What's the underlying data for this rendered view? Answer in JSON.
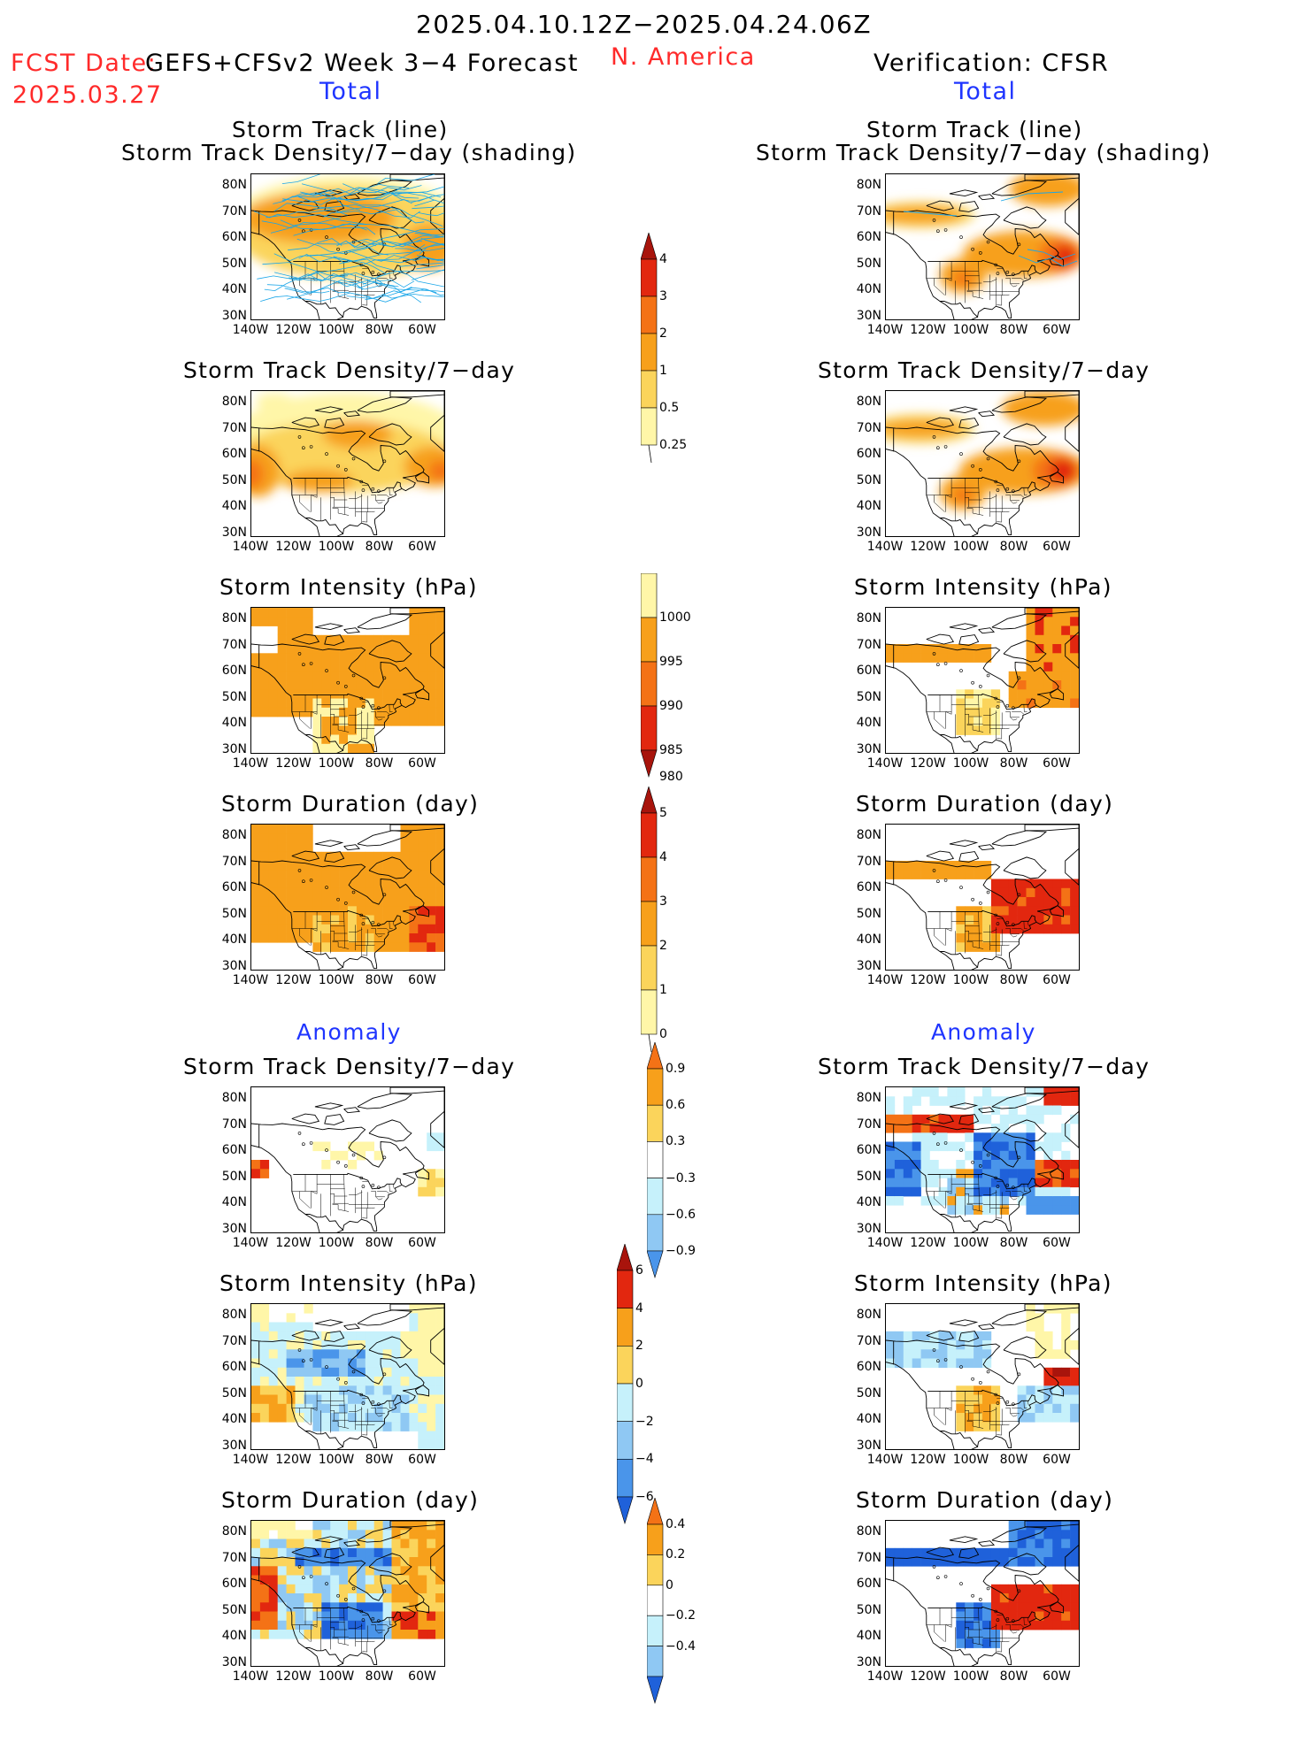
{
  "header": {
    "period": "2025.04.10.12Z−2025.04.24.06Z",
    "fcst_date_label": "FCST Date:",
    "model": "GEFS+CFSv2 Week 3−4 Forecast",
    "fcst_date": "2025.03.27",
    "region": "N. America",
    "verification": "Verification: CFSR"
  },
  "sections": {
    "total": "Total",
    "anomaly": "Anomaly"
  },
  "panel_titles": {
    "track_line": "Storm Track (line)",
    "track_shading": "Storm Track Density/7−day (shading)",
    "density": "Storm Track Density/7−day",
    "intensity": "Storm Intensity (hPa)",
    "duration": "Storm Duration (day)"
  },
  "axes": {
    "lat_labels": [
      "80N",
      "70N",
      "60N",
      "50N",
      "40N",
      "30N"
    ],
    "lon_labels": [
      "140W",
      "120W",
      "100W",
      "80W",
      "60W"
    ]
  },
  "colorbars": {
    "density_total": [
      "4",
      "3",
      "2",
      "1",
      "0.5",
      "0.25"
    ],
    "intensity_total": [
      "1000",
      "995",
      "990",
      "985",
      "980"
    ],
    "duration_total": [
      "5",
      "4",
      "3",
      "2",
      "1",
      "0"
    ],
    "density_anom": [
      "0.9",
      "0.6",
      "0.3",
      "−0.3",
      "−0.6",
      "−0.9"
    ],
    "intensity_anom": [
      "6",
      "4",
      "2",
      "0",
      "−2",
      "−4",
      "−6"
    ],
    "duration_anom": [
      "0.4",
      "0.2",
      "0",
      "−0.2",
      "−0.4"
    ]
  },
  "palette": {
    "pale_yellow": "#fff6a8",
    "yellow": "#fbd45b",
    "orange": "#f7a01b",
    "dark_orange": "#f47216",
    "red": "#e2270f",
    "dark_red": "#a8140c",
    "pale_blue": "#c6f1fb",
    "light_blue": "#8fc8f3",
    "mid_blue": "#4a95ea",
    "blue": "#1f61da",
    "track_line": "#1aa6e8",
    "title_red": "#ff2a2a",
    "title_blue": "#1f35ff"
  }
}
